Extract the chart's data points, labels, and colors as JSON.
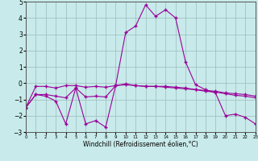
{
  "background_color": "#c8eaea",
  "grid_color": "#9bbcbc",
  "line_color": "#990099",
  "xlim": [
    0,
    23
  ],
  "ylim": [
    -3,
    5
  ],
  "yticks": [
    -3,
    -2,
    -1,
    0,
    1,
    2,
    3,
    4,
    5
  ],
  "xtick_labels": [
    "0",
    "1",
    "2",
    "3",
    "4",
    "5",
    "6",
    "7",
    "8",
    "9",
    "10",
    "11",
    "12",
    "13",
    "14",
    "15",
    "16",
    "17",
    "18",
    "19",
    "20",
    "21",
    "22",
    "23"
  ],
  "xlabel": "Windchill (Refroidissement éolien,°C)",
  "series": [
    {
      "x": [
        0,
        1,
        2,
        3,
        4,
        5,
        6,
        7,
        8,
        9,
        10,
        11,
        12,
        13,
        14,
        15,
        16,
        17,
        18,
        19,
        20,
        21,
        22,
        23
      ],
      "y": [
        -1.5,
        -0.7,
        -0.8,
        -1.1,
        -2.5,
        -0.3,
        -2.5,
        -2.3,
        -2.7,
        -0.15,
        3.1,
        3.5,
        4.8,
        4.1,
        4.5,
        4.0,
        1.3,
        -0.1,
        -0.4,
        -0.6,
        -2.0,
        -1.9,
        -2.1,
        -2.5
      ]
    },
    {
      "x": [
        0,
        1,
        2,
        3,
        4,
        5,
        6,
        7,
        8,
        9,
        10,
        11,
        12,
        13,
        14,
        15,
        16,
        17,
        18,
        19,
        20,
        21,
        22,
        23
      ],
      "y": [
        -1.5,
        -0.2,
        -0.2,
        -0.3,
        -0.15,
        -0.15,
        -0.25,
        -0.2,
        -0.25,
        -0.15,
        -0.1,
        -0.15,
        -0.2,
        -0.2,
        -0.2,
        -0.25,
        -0.3,
        -0.4,
        -0.5,
        -0.55,
        -0.65,
        -0.75,
        -0.8,
        -0.9
      ]
    },
    {
      "x": [
        0,
        1,
        2,
        3,
        4,
        5,
        6,
        7,
        8,
        9,
        10,
        11,
        12,
        13,
        14,
        15,
        16,
        17,
        18,
        19,
        20,
        21,
        22,
        23
      ],
      "y": [
        -1.5,
        -0.7,
        -0.7,
        -0.8,
        -0.9,
        -0.3,
        -0.85,
        -0.8,
        -0.85,
        -0.15,
        -0.05,
        -0.15,
        -0.2,
        -0.2,
        -0.25,
        -0.3,
        -0.35,
        -0.4,
        -0.45,
        -0.5,
        -0.6,
        -0.65,
        -0.7,
        -0.8
      ]
    }
  ]
}
